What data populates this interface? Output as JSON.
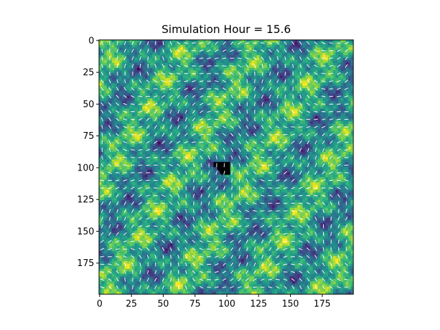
{
  "chart_data": {
    "type": "heatmap",
    "title": "Simulation Hour = 15.6",
    "xlabel": "",
    "ylabel": "",
    "grid_size": [
      200,
      200
    ],
    "xlim": [
      0,
      199
    ],
    "ylim": [
      199,
      0
    ],
    "y_axis_inverted": true,
    "x_ticks": [
      0,
      25,
      50,
      75,
      100,
      125,
      150,
      175
    ],
    "y_ticks": [
      0,
      25,
      50,
      75,
      100,
      125,
      150,
      175
    ],
    "colormap": "viridis",
    "overlay": "wind vector arrows (white)",
    "burned_area_color": "#000000",
    "burned_area": {
      "x_range": [
        90,
        102
      ],
      "y_range": [
        96,
        105
      ]
    },
    "colors": {
      "arrow": "#ffffff",
      "axis": "#000000",
      "background": "#ffffff"
    }
  }
}
